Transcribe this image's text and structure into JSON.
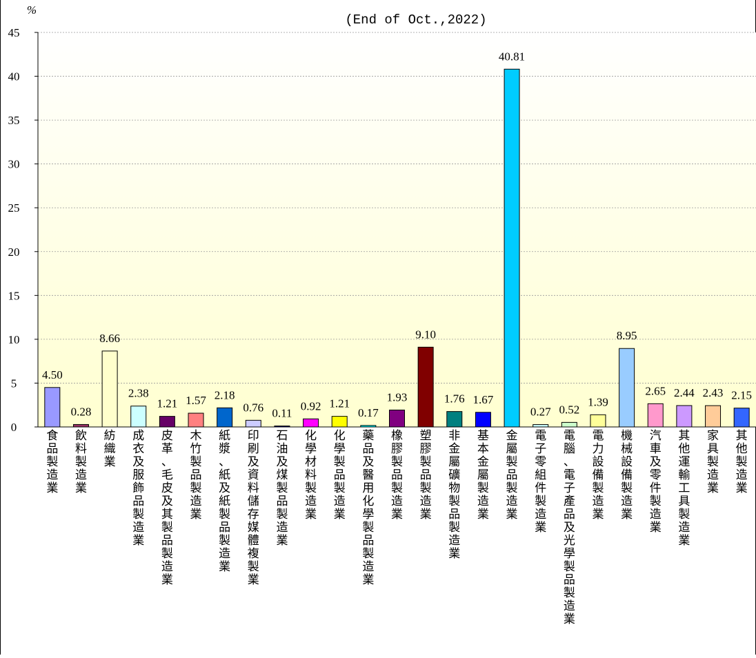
{
  "chart_data": {
    "type": "bar",
    "title": "",
    "subtitle": "(End of Oct.,2022)",
    "ylabel": "%",
    "xlabel": "",
    "ylim": [
      0,
      45
    ],
    "yticks": [
      0,
      5,
      10,
      15,
      20,
      25,
      30,
      35,
      40,
      45
    ],
    "grid": true,
    "legend": "none",
    "categories": [
      "食品製造業",
      "飲料製造業",
      "紡織業",
      "成衣及服飾品製造業",
      "皮革、毛皮及其製品製造業",
      "木竹製品製造業",
      "紙漿、紙及紙製品製造業",
      "印刷及資料儲存媒體複製業",
      "石油及煤製品製造業",
      "化學材料製造業",
      "化學製品製造業",
      "藥品及醫用化學製品製造業",
      "橡膠製品製造業",
      "塑膠製品製造業",
      "非金屬礦物製品製造業",
      "基本金屬製造業",
      "金屬製品製造業",
      "電子零組件製造業",
      "電腦、電子產品及光學製品製造業",
      "電力設備製造業",
      "機械設備製造業",
      "汽車及零件製造業",
      "其他運輸工具製造業",
      "家具製造業",
      "其他製造業"
    ],
    "values": [
      4.5,
      0.28,
      8.66,
      2.38,
      1.21,
      1.57,
      2.18,
      0.76,
      0.11,
      0.92,
      1.21,
      0.17,
      1.93,
      9.1,
      1.76,
      1.67,
      40.81,
      0.27,
      0.52,
      1.39,
      8.95,
      2.65,
      2.44,
      2.43,
      2.15
    ],
    "value_labels": [
      "4.50",
      "0.28",
      "8.66",
      "2.38",
      "1.21",
      "1.57",
      "2.18",
      "0.76",
      "0.11",
      "0.92",
      "1.21",
      "0.17",
      "1.93",
      "9.10",
      "1.76",
      "1.67",
      "40.81",
      "0.27",
      "0.52",
      "1.39",
      "8.95",
      "2.65",
      "2.44",
      "2.43",
      "2.15"
    ],
    "colors": [
      "#9999ff",
      "#993366",
      "#ffffcc",
      "#ccffff",
      "#660066",
      "#ff8080",
      "#0066cc",
      "#ccccff",
      "#000080",
      "#ff00ff",
      "#ffff00",
      "#00ffff",
      "#800080",
      "#800000",
      "#008080",
      "#0000ff",
      "#00ccff",
      "#ccffff",
      "#ccffcc",
      "#ffff99",
      "#99ccff",
      "#ff99cc",
      "#cc99ff",
      "#ffcc99",
      "#3366ff"
    ],
    "plot_background": [
      "#ffffff",
      "#ffffd0"
    ]
  }
}
